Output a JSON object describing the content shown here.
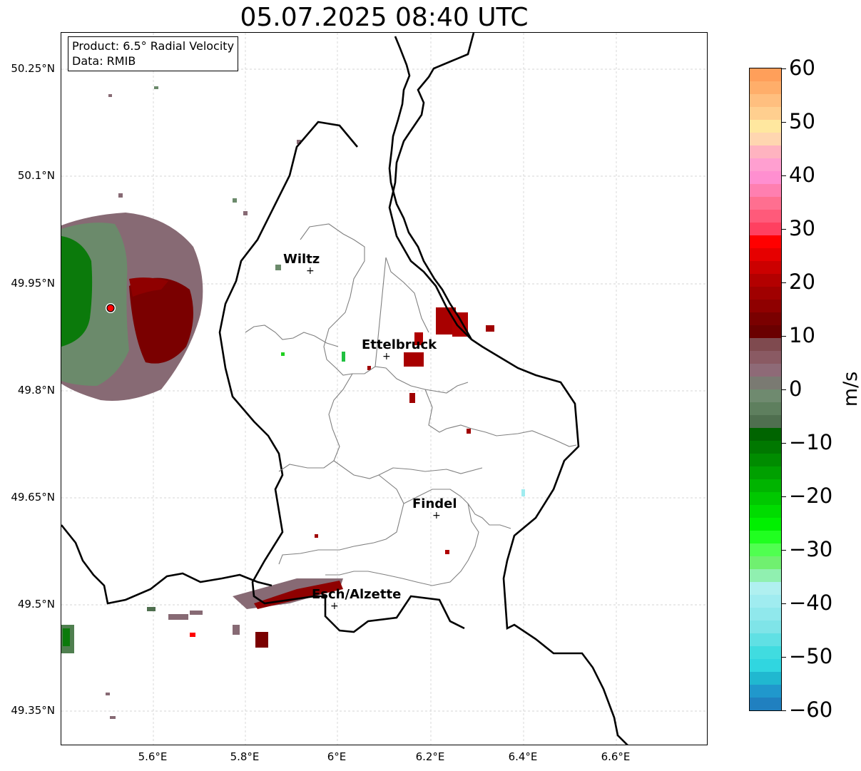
{
  "title": "05.07.2025 08:40 UTC",
  "info_box": {
    "product": "Product: 6.5° Radial Velocity",
    "source": "Data: RMIB"
  },
  "axes": {
    "lat_labels": [
      "50.25°N",
      "50.1°N",
      "49.95°N",
      "49.8°N",
      "49.65°N",
      "49.5°N",
      "49.35°N"
    ],
    "lon_labels": [
      "5.6°E",
      "5.8°E",
      "6°E",
      "6.2°E",
      "6.4°E",
      "6.6°E"
    ]
  },
  "cities": [
    {
      "name": "Wiltz"
    },
    {
      "name": "Ettelbruck"
    },
    {
      "name": "Findel"
    },
    {
      "name": "Esch/Alzette"
    }
  ],
  "colorbar": {
    "unit": "m/s",
    "tick_labels": [
      "60",
      "50",
      "40",
      "30",
      "20",
      "10",
      "0",
      "−10",
      "−20",
      "−30",
      "−40",
      "−50",
      "−60"
    ],
    "min": -60,
    "max": 60,
    "colors_top_to_bottom": [
      "#ff9f5a",
      "#ffae6a",
      "#ffbf7f",
      "#ffcf8f",
      "#ffe79f",
      "#ffd6b0",
      "#ffb3c0",
      "#ff9fd0",
      "#ff8fd0",
      "#ff7fb0",
      "#ff6f90",
      "#ff5a7a",
      "#ff4060",
      "#ff0000",
      "#e60000",
      "#cc0000",
      "#b30000",
      "#a00000",
      "#8f0000",
      "#7a0000",
      "#6a0000",
      "#7f4a4f",
      "#8a5a63",
      "#8e6a77",
      "#7a7a72",
      "#6f8a6f",
      "#5e7f5e",
      "#4f6f4f",
      "#006400",
      "#007800",
      "#008c00",
      "#00a000",
      "#00b400",
      "#00c800",
      "#00dc00",
      "#00f000",
      "#20ff20",
      "#50ff50",
      "#70f070",
      "#90f0b0",
      "#b0f0f0",
      "#a0ecf0",
      "#90e8ec",
      "#7fe4e8",
      "#60e0e4",
      "#40dce0",
      "#30d6e0",
      "#20b8d0",
      "#2098cc",
      "#2080c0"
    ]
  },
  "radar": {
    "site_marker_color": "#ff0000"
  }
}
